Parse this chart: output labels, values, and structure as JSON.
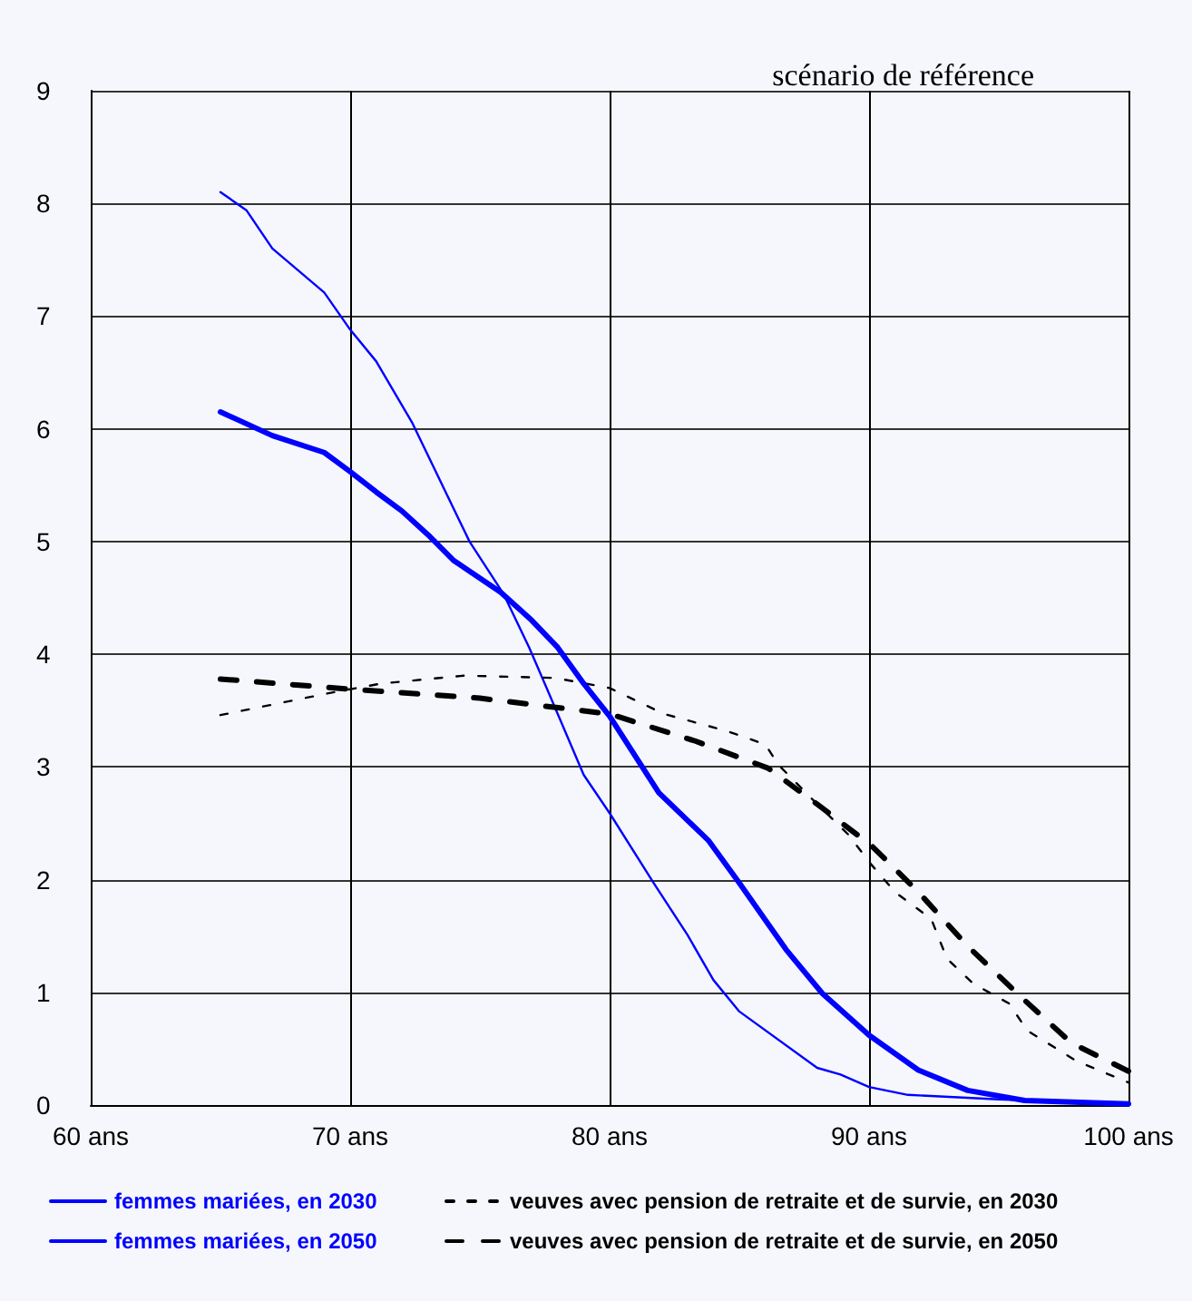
{
  "chart_data": {
    "type": "line",
    "title": "scénario de référence",
    "xlim": [
      60,
      100
    ],
    "xticks": [
      {
        "value": 60,
        "label": "60 ans"
      },
      {
        "value": 70,
        "label": "70 ans"
      },
      {
        "value": 80,
        "label": "80 ans"
      },
      {
        "value": 90,
        "label": "90 ans"
      },
      {
        "value": 100,
        "label": "100 ans"
      }
    ],
    "ylim": [
      0,
      9
    ],
    "yticks": [
      0,
      1,
      2,
      3,
      4,
      5,
      6,
      7,
      8,
      9
    ],
    "grid": true,
    "legend": "bottom",
    "marker": "none",
    "series": [
      {
        "name": "femmes mariées, en 2030",
        "color": "#0000ff",
        "line_style": "solid",
        "x": [
          65,
          66,
          67,
          69,
          70,
          71,
          72.4,
          74.6,
          75.9,
          76.9,
          77.5,
          79,
          80,
          81.7,
          83,
          84,
          85,
          88,
          88.9,
          90,
          91.5,
          95,
          100
        ],
        "values": [
          8.1,
          7.94,
          7.6,
          7.21,
          6.88,
          6.6,
          6.05,
          5.0,
          4.54,
          4.06,
          3.74,
          2.93,
          2.59,
          1.97,
          1.51,
          1.11,
          0.83,
          0.33,
          0.27,
          0.16,
          0.09,
          0.05,
          0.01
        ]
      },
      {
        "name": "veuves avec pension de retraite et de survie, en 2030",
        "color": "#000000",
        "line_style": "dashed",
        "x": [
          65,
          69.3,
          71.2,
          74.4,
          77.9,
          80,
          82.1,
          84.5,
          86,
          86.5,
          88,
          89.2,
          90.1,
          91,
          92.4,
          93,
          94,
          95.4,
          96.1,
          98,
          100
        ],
        "values": [
          3.46,
          3.66,
          3.74,
          3.81,
          3.79,
          3.7,
          3.47,
          3.32,
          3.2,
          3.02,
          2.67,
          2.4,
          2.13,
          1.89,
          1.65,
          1.3,
          1.08,
          0.9,
          0.66,
          0.39,
          0.2
        ]
      },
      {
        "name": "femmes mariées, en 2050",
        "color": "#0000ff",
        "line_style": "solid",
        "x": [
          65,
          67,
          69,
          70,
          71,
          72,
          73,
          74,
          75.8,
          77,
          78,
          79,
          80,
          81.9,
          83.8,
          85,
          86.8,
          88.2,
          90,
          91.9,
          93.8,
          96,
          100
        ],
        "values": [
          6.15,
          5.94,
          5.79,
          5.62,
          5.44,
          5.27,
          5.06,
          4.83,
          4.55,
          4.3,
          4.06,
          3.74,
          3.45,
          2.77,
          2.35,
          1.97,
          1.38,
          0.99,
          0.62,
          0.31,
          0.13,
          0.04,
          0.01
        ]
      },
      {
        "name": "veuves avec pension de retraite et de survie, en 2050",
        "color": "#000000",
        "line_style": "dashed",
        "x": [
          65,
          70,
          75,
          77.5,
          80,
          83.3,
          86.1,
          88,
          90.1,
          91.9,
          93.8,
          95.9,
          97.8,
          100
        ],
        "values": [
          3.78,
          3.69,
          3.61,
          3.54,
          3.47,
          3.23,
          2.99,
          2.67,
          2.3,
          1.89,
          1.41,
          0.95,
          0.55,
          0.3
        ]
      }
    ]
  }
}
